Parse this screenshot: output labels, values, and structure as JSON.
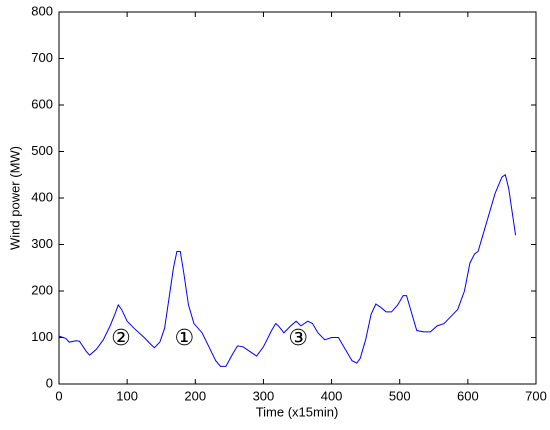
{
  "chart_data": {
    "type": "line",
    "xlabel": "Time (x15min)",
    "ylabel": "Wind power (MW)",
    "x": [
      0,
      10,
      15,
      25,
      30,
      40,
      45,
      55,
      65,
      75,
      82,
      87,
      92,
      100,
      110,
      125,
      135,
      140,
      148,
      155,
      162,
      168,
      173,
      178,
      183,
      190,
      198,
      210,
      220,
      230,
      237,
      245,
      255,
      262,
      270,
      280,
      290,
      300,
      312,
      318,
      322,
      330,
      340,
      348,
      355,
      365,
      372,
      380,
      390,
      400,
      410,
      420,
      430,
      437,
      442,
      450,
      458,
      465,
      472,
      480,
      488,
      497,
      505,
      510,
      518,
      525,
      535,
      545,
      555,
      565,
      575,
      585,
      595,
      603,
      610,
      615,
      622,
      630,
      640,
      650,
      655,
      660,
      665,
      670
    ],
    "values": [
      103,
      98,
      90,
      93,
      92,
      70,
      62,
      75,
      95,
      125,
      150,
      170,
      160,
      135,
      120,
      100,
      85,
      78,
      90,
      120,
      190,
      250,
      285,
      285,
      240,
      170,
      130,
      110,
      80,
      50,
      38,
      38,
      65,
      82,
      80,
      70,
      60,
      80,
      115,
      130,
      125,
      110,
      125,
      135,
      125,
      135,
      130,
      110,
      95,
      100,
      100,
      75,
      50,
      45,
      55,
      95,
      150,
      172,
      165,
      155,
      155,
      170,
      190,
      190,
      150,
      115,
      112,
      112,
      125,
      130,
      145,
      160,
      200,
      260,
      280,
      285,
      320,
      360,
      410,
      445,
      450,
      420,
      370,
      320
    ],
    "color": "#0000ff",
    "xlim": [
      0,
      700
    ],
    "xticks": [
      0,
      100,
      200,
      300,
      400,
      500,
      600,
      700
    ],
    "ylim": [
      0,
      800
    ],
    "yticks": [
      0,
      100,
      200,
      300,
      400,
      500,
      600,
      700,
      800
    ],
    "grid": false,
    "annotations": [
      {
        "text": "②",
        "x": 91,
        "y": 97
      },
      {
        "text": "①",
        "x": 184,
        "y": 97
      },
      {
        "text": "③",
        "x": 351,
        "y": 97
      }
    ]
  }
}
